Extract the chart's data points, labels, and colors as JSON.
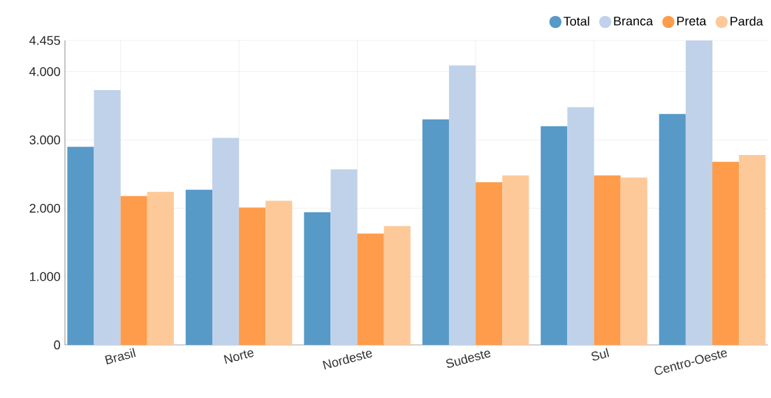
{
  "chart_data": {
    "type": "bar",
    "categories": [
      "Brasil",
      "Norte",
      "Nordeste",
      "Sudeste",
      "Sul",
      "Centro-Oeste"
    ],
    "series": [
      {
        "name": "Total",
        "color": "#5799c7",
        "values": [
          2900,
          2270,
          1940,
          3300,
          3200,
          3380
        ]
      },
      {
        "name": "Branca",
        "color": "#c0d2ea",
        "values": [
          3730,
          3030,
          2570,
          4090,
          3480,
          4455
        ]
      },
      {
        "name": "Preta",
        "color": "#fe9c4b",
        "values": [
          2180,
          2010,
          1630,
          2380,
          2480,
          2680
        ]
      },
      {
        "name": "Parda",
        "color": "#fec999",
        "values": [
          2240,
          2110,
          1740,
          2480,
          2450,
          2780
        ]
      }
    ],
    "ylim": [
      0,
      4455
    ],
    "yticks": [
      0,
      {
        "value": 1000,
        "label": "1.000"
      },
      {
        "value": 2000,
        "label": "2.000"
      },
      {
        "value": 3000,
        "label": "3.000"
      },
      {
        "value": 4000,
        "label": "4.000"
      },
      {
        "value": 4455,
        "label": "4.455"
      }
    ],
    "grid": true,
    "legend": "top right"
  }
}
